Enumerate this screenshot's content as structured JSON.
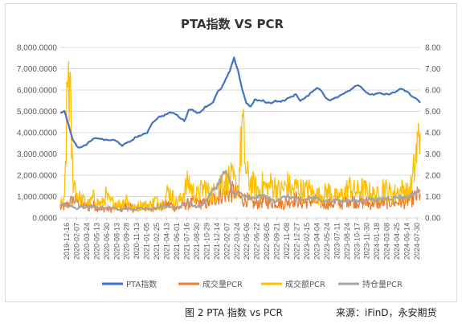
{
  "chart_data": {
    "type": "line",
    "title": "PTA指数 VS PCR",
    "y_left": {
      "ticks": [
        "0.0000",
        "1,000.0000",
        "2,000.0000",
        "3,000.0000",
        "4,000.0000",
        "5,000.0000",
        "6,000.0000",
        "7,000.0000",
        "8,000.0000"
      ],
      "ylim": [
        0,
        8000
      ]
    },
    "y_right": {
      "ticks": [
        "0.00",
        "1.00",
        "2.00",
        "3.00",
        "4.00",
        "5.00",
        "6.00",
        "7.00",
        "8.00"
      ],
      "ylim": [
        0,
        8
      ]
    },
    "x_ticks": [
      "2019-12-16",
      "2020-02-07",
      "2020-03-24",
      "2020-05-13",
      "2020-06-30",
      "2020-08-13",
      "2020-09-28",
      "2020-11-13",
      "2021-01-05",
      "2021-02-25",
      "2021-04-13",
      "2021-06-01",
      "2021-07-16",
      "2021-08-30",
      "2021-10-29",
      "2021-12-14",
      "2022-02-07",
      "2022-03-24",
      "2022-05-06",
      "2022-06-22",
      "2022-08-05",
      "2022-09-21",
      "2022-11-08",
      "2022-12-27",
      "2023-02-15",
      "2023-04-04",
      "2023-05-24",
      "2023-07-11",
      "2023-08-24",
      "2023-10-17",
      "2023-11-30",
      "2024-01-18",
      "2024-03-08",
      "2024-04-25",
      "2024-06-14",
      "2024-07-30"
    ],
    "grid": true,
    "legend_position": "bottom",
    "series": [
      {
        "name": "PTA指数",
        "axis": "left",
        "color": "#4472C4",
        "style": "line",
        "values": [
          4950,
          5000,
          4400,
          3700,
          3350,
          3300,
          3400,
          3550,
          3700,
          3750,
          3700,
          3650,
          3650,
          3650,
          3550,
          3400,
          3500,
          3600,
          3750,
          3850,
          3900,
          4000,
          4400,
          4600,
          4750,
          4800,
          4900,
          4950,
          4850,
          4700,
          4550,
          5050,
          5100,
          4900,
          5000,
          5200,
          5300,
          5450,
          5900,
          6100,
          6500,
          6900,
          7500,
          6900,
          6000,
          5400,
          5200,
          5550,
          5500,
          5500,
          5400,
          5400,
          5500,
          5450,
          5500,
          5600,
          5700,
          5800,
          5500,
          5600,
          5750,
          5950,
          6100,
          6000,
          5700,
          5500,
          5600,
          5650,
          5800,
          5900,
          6000,
          6150,
          6250,
          6100,
          5850,
          5800,
          5800,
          5850,
          5800,
          5800,
          5850,
          5900,
          6050,
          6000,
          5900,
          5700,
          5600,
          5400
        ]
      },
      {
        "name": "成交量PCR",
        "axis": "right",
        "color": "#ED7D31",
        "style": "spiky",
        "values": [
          0.45,
          0.5,
          0.62,
          0.8,
          0.78,
          0.55,
          0.55,
          0.48,
          0.58,
          0.48,
          0.42,
          0.42,
          0.38,
          0.45,
          0.48,
          0.42,
          0.55,
          0.45,
          0.4,
          0.45,
          0.5,
          0.42,
          0.42,
          0.58,
          0.48,
          0.52,
          0.58,
          0.58,
          0.42,
          0.48,
          0.62,
          0.62,
          0.68,
          0.72,
          0.68,
          0.62,
          0.68,
          0.85,
          0.95,
          1.05,
          1.1,
          1.1,
          1.2,
          1.0,
          0.8,
          0.85,
          0.68,
          0.62,
          0.68,
          0.75,
          0.72,
          0.68,
          0.72,
          0.68,
          0.62,
          0.75,
          0.8,
          0.85,
          0.68,
          0.68,
          0.75,
          0.78,
          0.72,
          0.68,
          0.62,
          0.68,
          0.62,
          0.72,
          0.62,
          0.78,
          0.85,
          0.75,
          0.72,
          0.68,
          0.68,
          0.62,
          0.72,
          0.62,
          0.72,
          0.68,
          0.72,
          0.68,
          0.75,
          0.68,
          0.78,
          0.85,
          0.95,
          1.1
        ]
      },
      {
        "name": "成交额PCR",
        "axis": "right",
        "color": "#FFC000",
        "style": "spiky",
        "values": [
          0.6,
          0.7,
          7.05,
          1.9,
          1.1,
          0.8,
          0.75,
          0.6,
          0.9,
          0.7,
          0.6,
          1.0,
          0.7,
          0.7,
          0.6,
          0.65,
          0.9,
          0.5,
          0.45,
          0.55,
          0.6,
          0.55,
          0.6,
          0.8,
          0.6,
          0.7,
          1.2,
          1.0,
          0.7,
          0.8,
          1.2,
          1.6,
          1.2,
          1.0,
          1.2,
          1.4,
          1.1,
          1.1,
          1.3,
          1.7,
          1.6,
          1.8,
          1.6,
          1.3,
          4.2,
          1.9,
          1.6,
          1.4,
          1.2,
          1.5,
          1.3,
          1.5,
          1.4,
          1.2,
          1.3,
          1.5,
          1.2,
          1.4,
          1.3,
          1.2,
          1.3,
          1.1,
          1.0,
          1.0,
          1.1,
          1.2,
          1.0,
          0.9,
          1.0,
          1.2,
          1.4,
          1.2,
          1.2,
          1.3,
          1.2,
          1.1,
          1.0,
          1.0,
          1.4,
          1.2,
          1.1,
          1.1,
          1.2,
          1.3,
          1.1,
          1.5,
          2.8,
          4.0
        ]
      },
      {
        "name": "持仓量PCR",
        "axis": "right",
        "color": "#A5A5A5",
        "style": "smooth",
        "values": [
          0.65,
          0.6,
          0.55,
          0.5,
          0.45,
          0.55,
          0.5,
          0.52,
          0.55,
          0.5,
          0.42,
          0.45,
          0.45,
          0.5,
          0.4,
          0.4,
          0.45,
          0.4,
          0.4,
          0.45,
          0.45,
          0.42,
          0.4,
          0.42,
          0.5,
          0.6,
          0.55,
          0.5,
          0.5,
          0.55,
          0.65,
          0.7,
          0.6,
          0.5,
          0.6,
          0.75,
          1.05,
          1.3,
          1.55,
          1.9,
          2.2,
          1.6,
          1.05,
          1.2,
          1.1,
          0.95,
          0.9,
          0.95,
          1.0,
          1.05,
          0.95,
          0.85,
          0.8,
          0.9,
          0.95,
          1.0,
          0.95,
          0.9,
          0.8,
          0.85,
          0.9,
          0.95,
          0.9,
          0.85,
          0.8,
          0.75,
          0.8,
          0.85,
          0.75,
          0.8,
          0.85,
          0.8,
          0.75,
          0.8,
          0.85,
          0.9,
          0.85,
          0.85,
          0.9,
          0.95,
          0.9,
          0.95,
          1.0,
          0.95,
          1.0,
          1.1,
          1.2,
          1.3
        ]
      }
    ]
  },
  "caption": "图 2 PTA 指数  vs PCR",
  "source": "来源：iFinD，永安期货"
}
